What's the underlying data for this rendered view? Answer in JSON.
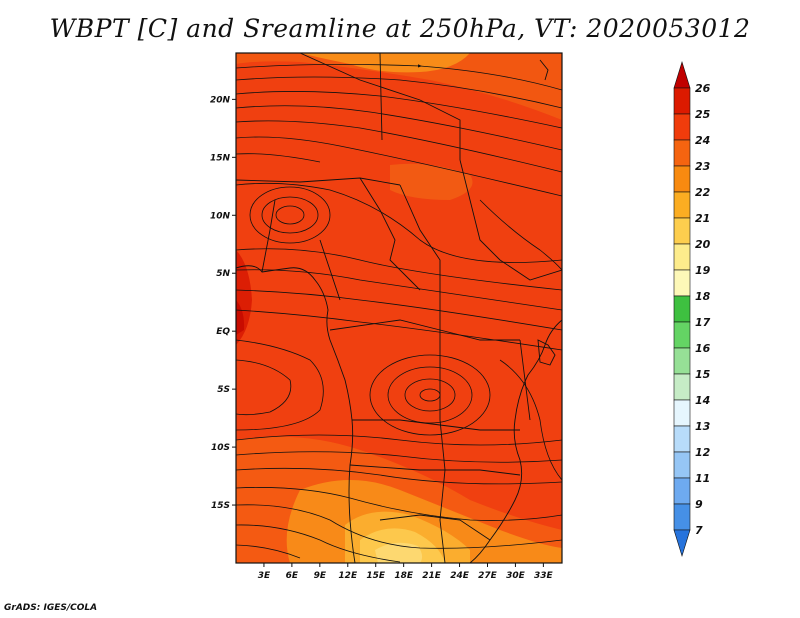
{
  "title": "WBPT [C] and Sreamline at 250hPa, VT: 2020053012",
  "footer": "GrADS: IGES/COLA",
  "map": {
    "lon_range": [
      0,
      35
    ],
    "lat_range": [
      -20,
      24
    ],
    "x_ticks": [
      "3E",
      "6E",
      "9E",
      "12E",
      "15E",
      "18E",
      "21E",
      "24E",
      "27E",
      "30E",
      "33E"
    ],
    "x_tick_values": [
      3,
      6,
      9,
      12,
      15,
      18,
      21,
      24,
      27,
      30,
      33
    ],
    "y_ticks": [
      "20N",
      "15N",
      "10N",
      "5N",
      "EQ",
      "5S",
      "10S",
      "15S"
    ],
    "y_tick_values": [
      20,
      15,
      10,
      5,
      0,
      -5,
      -10,
      -15
    ],
    "background_color": "#f04010"
  },
  "colorbar": {
    "labels": [
      "26",
      "25",
      "24",
      "23",
      "22",
      "21",
      "20",
      "19",
      "18",
      "17",
      "16",
      "15",
      "14",
      "13",
      "12",
      "11",
      "9",
      "7"
    ],
    "colors": [
      "#c00000",
      "#dc1a00",
      "#f03c0c",
      "#f56410",
      "#f88a10",
      "#fbad22",
      "#fdce4e",
      "#fdec8c",
      "#fdf8b8",
      "#3ec040",
      "#64d464",
      "#96e096",
      "#c6ecc6",
      "#e6f6fe",
      "#b8dcfa",
      "#96c6f5",
      "#6eaaf0",
      "#4690e6",
      "#2673dc"
    ]
  }
}
